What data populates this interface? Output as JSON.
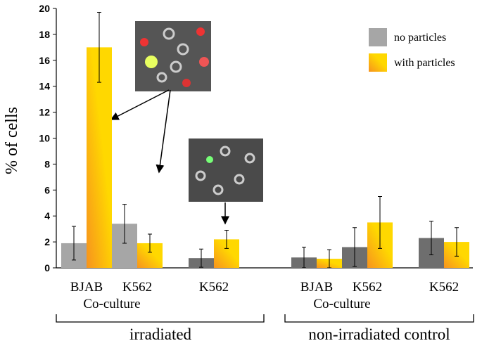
{
  "chart_data": {
    "type": "bar",
    "y_label": "% of cells",
    "categories": [
      "BJAB",
      "K562",
      "K562",
      "BJAB",
      "K562",
      "K562"
    ],
    "subgroup_labels": [
      "Co-culture",
      "Co-culture"
    ],
    "group_labels": [
      "irradiated",
      "non-irradiated control"
    ],
    "series": [
      {
        "name": "no particles",
        "color": "#a6a6a6",
        "colors": [
          "#a6a6a6",
          "#a6a6a6",
          "#6e6e6e",
          "#6e6e6e",
          "#6e6e6e",
          "#6e6e6e"
        ],
        "values": [
          1.9,
          3.4,
          0.75,
          0.8,
          1.6,
          2.3
        ],
        "errors": [
          1.3,
          1.5,
          0.7,
          0.8,
          1.5,
          1.3
        ]
      },
      {
        "name": "with particles",
        "color": "#ffd800",
        "values": [
          17,
          1.9,
          2.2,
          0.7,
          3.5,
          2.0
        ],
        "errors": [
          2.7,
          0.7,
          0.7,
          0.7,
          2.0,
          1.1
        ]
      }
    ],
    "ylim": [
      0,
      20
    ],
    "yticks": [
      0,
      2,
      4,
      6,
      8,
      10,
      12,
      14,
      16,
      18,
      20
    ],
    "grid": false,
    "legend": "top-right"
  }
}
